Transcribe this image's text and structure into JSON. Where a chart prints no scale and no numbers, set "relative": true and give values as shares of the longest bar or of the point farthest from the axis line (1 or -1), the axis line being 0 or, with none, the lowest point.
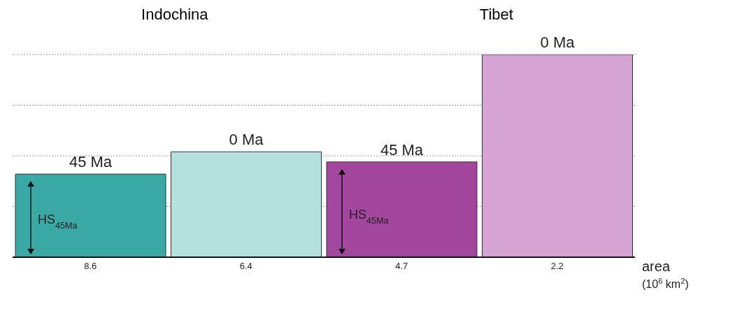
{
  "chart_data": {
    "type": "bar",
    "relative": true,
    "categories": [
      "8.6",
      "6.4",
      "4.7",
      "2.2"
    ],
    "values": [
      0.41,
      0.52,
      0.47,
      1
    ],
    "colors": [
      "#3aa8a4",
      "#b3e1de",
      "#a2469e",
      "#d6a4d4"
    ],
    "xlabel": "area (10$^{6}$ km$^{2}$)",
    "grid": "y",
    "annotations": [
      "Indochina",
      "Tibet",
      "HS$_{45Ma}$",
      "HS$_{45Ma}$",
      {
        "text": "45 Ma",
        "x": "8.6",
        "y": 0.41
      },
      {
        "text": "0 Ma",
        "x": "6.4",
        "y": 0.52
      },
      {
        "text": "45 Ma",
        "x": "4.7",
        "y": 0.47
      },
      {
        "text": "0 Ma",
        "x": "2.2",
        "y": 1
      }
    ]
  }
}
